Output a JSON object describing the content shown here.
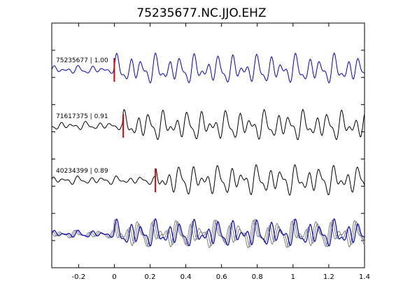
{
  "chart_data": {
    "type": "line",
    "title": "75235677.NC.JJO.EHZ",
    "xlabel": "",
    "ylabel": "",
    "xlim": [
      -0.35,
      1.4
    ],
    "x_ticks": [
      -0.2,
      0,
      0.2,
      0.4,
      0.6,
      0.8,
      1,
      1.2,
      1.4
    ],
    "x_tick_labels": [
      "-0.2",
      "0",
      "0.2",
      "0.4",
      "0.6",
      "0.8",
      "1",
      "1.2",
      "1.4"
    ],
    "grid": false,
    "colors": {
      "reference": "#0000cc",
      "similar": "#000000",
      "overlay": "#808080",
      "pick": "#dd0000"
    },
    "traces": [
      {
        "label": "75235677 | 1.00",
        "pick_time": 0.0,
        "color": "reference"
      },
      {
        "label": "71617375 | 0.91",
        "pick_time": 0.05,
        "color": "similar"
      },
      {
        "label": "40234399 | 0.89",
        "pick_time": 0.23,
        "color": "similar"
      }
    ],
    "note_overlay": "bottom panel overlays all three traces"
  }
}
